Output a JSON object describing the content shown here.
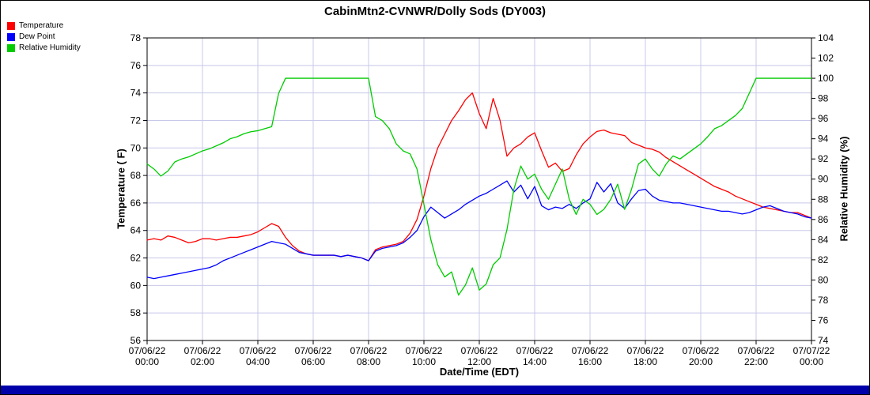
{
  "chart_data": {
    "type": "line",
    "title": "CabinMtn2-CVNWR/Dolly Sods (DY003)",
    "xlabel": "Date/Time (EDT)",
    "ylabel_left": "Temperature ( F)",
    "ylabel_right": "Relative Humidity (%)",
    "left_axis": {
      "min": 56,
      "max": 78,
      "step": 2
    },
    "right_axis": {
      "min": 74,
      "max": 104,
      "step": 2
    },
    "x_start": 0,
    "x_end": 24,
    "x_step": 0.25,
    "x_tick_step": 2,
    "x_ticks": [
      {
        "date": "07/06/22",
        "time": "00:00"
      },
      {
        "date": "07/06/22",
        "time": "02:00"
      },
      {
        "date": "07/06/22",
        "time": "04:00"
      },
      {
        "date": "07/06/22",
        "time": "06:00"
      },
      {
        "date": "07/06/22",
        "time": "08:00"
      },
      {
        "date": "07/06/22",
        "time": "10:00"
      },
      {
        "date": "07/06/22",
        "time": "12:00"
      },
      {
        "date": "07/06/22",
        "time": "14:00"
      },
      {
        "date": "07/06/22",
        "time": "16:00"
      },
      {
        "date": "07/06/22",
        "time": "18:00"
      },
      {
        "date": "07/06/22",
        "time": "20:00"
      },
      {
        "date": "07/06/22",
        "time": "22:00"
      },
      {
        "date": "07/07/22",
        "time": "00:00"
      }
    ],
    "grid_color": "#c8c8ea",
    "axis_color": "#000000",
    "bottom_bar_color": "#0000aa",
    "legend_position": "top-left",
    "series": [
      {
        "name": "Temperature",
        "axis": "left",
        "color": "#ff0000",
        "values": [
          63.3,
          63.4,
          63.3,
          63.6,
          63.5,
          63.3,
          63.1,
          63.2,
          63.4,
          63.4,
          63.3,
          63.4,
          63.5,
          63.5,
          63.6,
          63.7,
          63.9,
          64.2,
          64.5,
          64.3,
          63.5,
          62.9,
          62.5,
          62.3,
          62.2,
          62.2,
          62.2,
          62.2,
          62.1,
          62.2,
          62.1,
          62.0,
          61.8,
          62.6,
          62.8,
          62.9,
          63.0,
          63.2,
          63.8,
          64.8,
          66.5,
          68.5,
          70.0,
          71.0,
          72.0,
          72.7,
          73.5,
          74.0,
          72.5,
          71.4,
          73.6,
          72.0,
          69.4,
          70.0,
          70.3,
          70.8,
          71.1,
          69.8,
          68.6,
          68.9,
          68.3,
          68.5,
          69.5,
          70.3,
          70.8,
          71.2,
          71.3,
          71.1,
          71.0,
          70.9,
          70.4,
          70.2,
          70.0,
          69.9,
          69.7,
          69.3,
          69.0,
          68.7,
          68.4,
          68.1,
          67.8,
          67.5,
          67.2,
          67.0,
          66.8,
          66.5,
          66.3,
          66.1,
          65.9,
          65.7,
          65.6,
          65.5,
          65.4,
          65.3,
          65.3,
          65.1,
          64.9
        ]
      },
      {
        "name": "Dew Point",
        "axis": "left",
        "color": "#0000ff",
        "values": [
          60.6,
          60.5,
          60.6,
          60.7,
          60.8,
          60.9,
          61.0,
          61.1,
          61.2,
          61.3,
          61.5,
          61.8,
          62.0,
          62.2,
          62.4,
          62.6,
          62.8,
          63.0,
          63.2,
          63.1,
          63.0,
          62.7,
          62.4,
          62.3,
          62.2,
          62.2,
          62.2,
          62.2,
          62.1,
          62.2,
          62.1,
          62.0,
          61.8,
          62.5,
          62.7,
          62.8,
          62.9,
          63.1,
          63.5,
          64.0,
          65.0,
          65.7,
          65.3,
          64.9,
          65.2,
          65.5,
          65.9,
          66.2,
          66.5,
          66.7,
          67.0,
          67.3,
          67.6,
          66.8,
          67.3,
          66.3,
          67.2,
          65.8,
          65.5,
          65.7,
          65.6,
          65.9,
          65.6,
          66.0,
          66.3,
          67.5,
          66.8,
          67.4,
          66.0,
          65.6,
          66.3,
          66.9,
          67.0,
          66.5,
          66.2,
          66.1,
          66.0,
          66.0,
          65.9,
          65.8,
          65.7,
          65.6,
          65.5,
          65.4,
          65.4,
          65.3,
          65.2,
          65.3,
          65.5,
          65.7,
          65.8,
          65.6,
          65.4,
          65.3,
          65.2,
          65.0,
          64.9
        ]
      },
      {
        "name": "Relative Humidity",
        "axis": "right",
        "color": "#00cc00",
        "values": [
          91.5,
          91.0,
          90.3,
          90.8,
          91.7,
          92.0,
          92.2,
          92.5,
          92.8,
          93.0,
          93.3,
          93.6,
          94.0,
          94.2,
          94.5,
          94.7,
          94.8,
          95.0,
          95.2,
          98.5,
          100,
          100,
          100,
          100,
          100,
          100,
          100,
          100,
          100,
          100,
          100,
          100,
          100,
          96.2,
          95.8,
          95.0,
          93.5,
          92.8,
          92.5,
          91.0,
          87.5,
          84.0,
          81.5,
          80.3,
          80.8,
          78.5,
          79.5,
          81.2,
          79.0,
          79.6,
          81.5,
          82.2,
          85.0,
          89.0,
          91.3,
          90.0,
          90.5,
          89.0,
          88.0,
          89.5,
          91.0,
          88.0,
          86.5,
          88.0,
          87.5,
          86.5,
          87.0,
          88.0,
          89.5,
          87.0,
          89.0,
          91.5,
          92.0,
          91.0,
          90.3,
          91.5,
          92.3,
          92.0,
          92.5,
          93.0,
          93.5,
          94.2,
          95.0,
          95.3,
          95.8,
          96.3,
          97.0,
          98.5,
          100,
          100,
          100,
          100,
          100,
          100,
          100,
          100,
          100
        ]
      }
    ]
  }
}
